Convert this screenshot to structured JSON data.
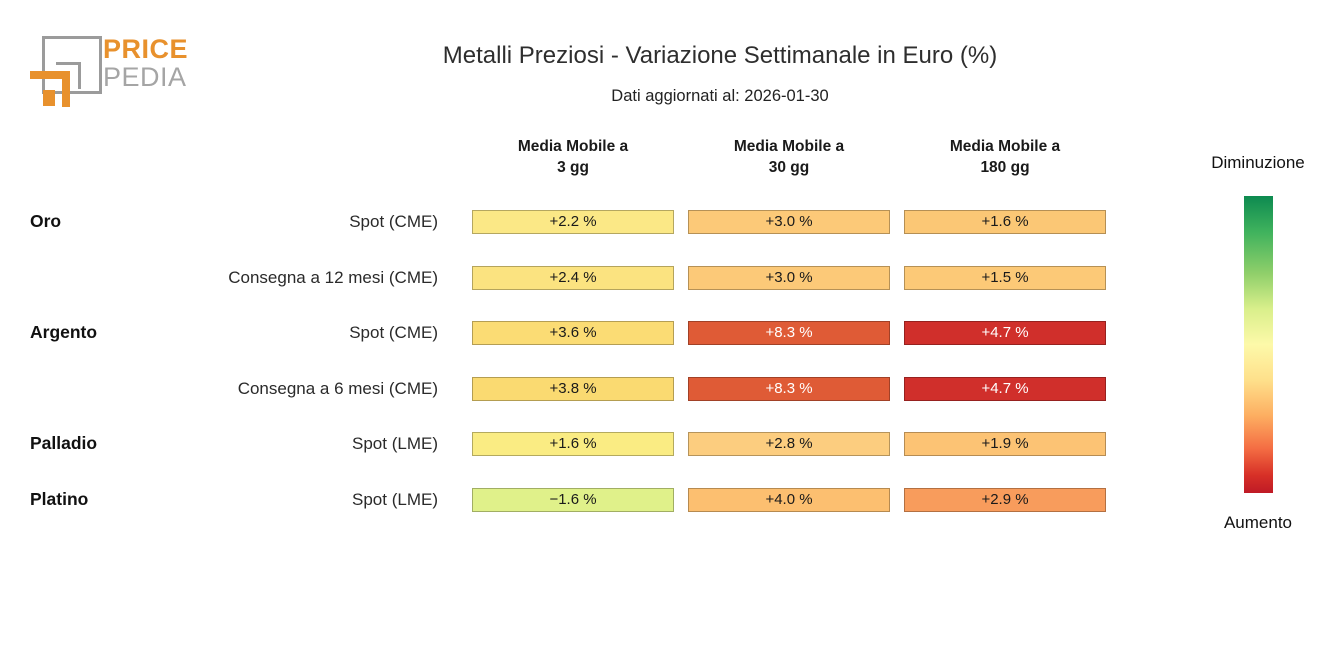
{
  "logo": {
    "brand_top": "PRICE",
    "brand_bottom": "PEDIA"
  },
  "header": {
    "title": "Metalli Preziosi - Variazione Settimanale in Euro (%)",
    "subtitle": "Dati aggiornati al: 2026-01-30"
  },
  "columns": [
    {
      "label": "Media Mobile a\n3 gg"
    },
    {
      "label": "Media Mobile a\n30 gg"
    },
    {
      "label": "Media Mobile a\n180 gg"
    }
  ],
  "rows": [
    {
      "group": "Oro",
      "series": "Spot (CME)",
      "cells": [
        {
          "text": "+2.2 %",
          "bg": "#FBE886",
          "fg": "#1a1a1a"
        },
        {
          "text": "+3.0 %",
          "bg": "#FCC978",
          "fg": "#1a1a1a"
        },
        {
          "text": "+1.6 %",
          "bg": "#FBC775",
          "fg": "#1a1a1a"
        }
      ]
    },
    {
      "group": "",
      "series": "Consegna a 12 mesi (CME)",
      "cells": [
        {
          "text": "+2.4 %",
          "bg": "#FBE380",
          "fg": "#1a1a1a"
        },
        {
          "text": "+3.0 %",
          "bg": "#FCC978",
          "fg": "#1a1a1a"
        },
        {
          "text": "+1.5 %",
          "bg": "#FCC977",
          "fg": "#1a1a1a"
        }
      ]
    },
    {
      "group": "Argento",
      "series": "Spot (CME)",
      "cells": [
        {
          "text": "+3.6 %",
          "bg": "#FBDC74",
          "fg": "#1a1a1a"
        },
        {
          "text": "+8.3 %",
          "bg": "#DF5B36",
          "fg": "#ffffff"
        },
        {
          "text": "+4.7 %",
          "bg": "#D02F2B",
          "fg": "#ffffff"
        }
      ]
    },
    {
      "group": "",
      "series": "Consegna a 6 mesi (CME)",
      "cells": [
        {
          "text": "+3.8 %",
          "bg": "#FADA71",
          "fg": "#1a1a1a"
        },
        {
          "text": "+8.3 %",
          "bg": "#DF5B36",
          "fg": "#ffffff"
        },
        {
          "text": "+4.7 %",
          "bg": "#D02F2B",
          "fg": "#ffffff"
        }
      ]
    },
    {
      "group": "Palladio",
      "series": "Spot (LME)",
      "cells": [
        {
          "text": "+1.6 %",
          "bg": "#FAEC83",
          "fg": "#1a1a1a"
        },
        {
          "text": "+2.8 %",
          "bg": "#FCCD7F",
          "fg": "#1a1a1a"
        },
        {
          "text": "+1.9 %",
          "bg": "#FCC374",
          "fg": "#1a1a1a"
        }
      ]
    },
    {
      "group": "Platino",
      "series": "Spot (LME)",
      "cells": [
        {
          "text": "−1.6 %",
          "bg": "#E0F18A",
          "fg": "#1a1a1a"
        },
        {
          "text": "+4.0 %",
          "bg": "#FCBF70",
          "fg": "#1a1a1a"
        },
        {
          "text": "+2.9 %",
          "bg": "#F89C5C",
          "fg": "#1a1a1a"
        }
      ]
    }
  ],
  "legend": {
    "top_label": "Diminuzione",
    "bottom_label": "Aumento",
    "gradient_stops": [
      "#0d8a50 0%",
      "#3fb25d 12%",
      "#8fcf6a 26%",
      "#d9ef8b 38%",
      "#fdf9a9 50%",
      "#fee08b 62%",
      "#fdae61 74%",
      "#f46d43 85%",
      "#d73027 94%",
      "#bf1a26 100%"
    ]
  },
  "chart_data": {
    "type": "heatmap",
    "title": "Metalli Preziosi - Variazione Settimanale in Euro (%)",
    "subtitle": "Dati aggiornati al: 2026-01-30",
    "unit": "%",
    "columns": [
      "Media Mobile a 3 gg",
      "Media Mobile a 30 gg",
      "Media Mobile a 180 gg"
    ],
    "rows": [
      {
        "group": "Oro",
        "series": "Spot (CME)",
        "values": [
          2.2,
          3.0,
          1.6
        ]
      },
      {
        "group": "Oro",
        "series": "Consegna a 12 mesi (CME)",
        "values": [
          2.4,
          3.0,
          1.5
        ]
      },
      {
        "group": "Argento",
        "series": "Spot (CME)",
        "values": [
          3.6,
          8.3,
          4.7
        ]
      },
      {
        "group": "Argento",
        "series": "Consegna a 6 mesi (CME)",
        "values": [
          3.8,
          8.3,
          4.7
        ]
      },
      {
        "group": "Palladio",
        "series": "Spot (LME)",
        "values": [
          1.6,
          2.8,
          1.9
        ]
      },
      {
        "group": "Platino",
        "series": "Spot (LME)",
        "values": [
          -1.6,
          4.0,
          2.9
        ]
      }
    ],
    "legend": {
      "top": "Diminuzione",
      "bottom": "Aumento",
      "colormap": "green-yellow-red, green = decrease, red = increase, normalized per column"
    }
  }
}
